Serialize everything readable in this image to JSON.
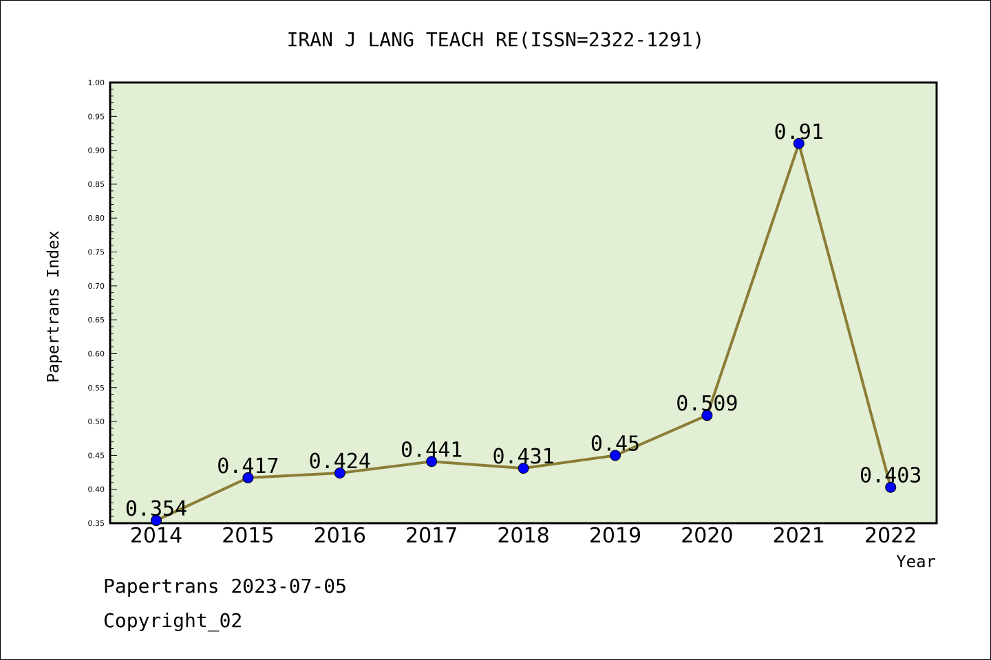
{
  "chart_data": {
    "type": "line",
    "title": "IRAN J LANG TEACH RE(ISSN=2322-1291)",
    "xlabel": "Year",
    "ylabel": "Papertrans Index",
    "categories": [
      "2014",
      "2015",
      "2016",
      "2017",
      "2018",
      "2019",
      "2020",
      "2021",
      "2022"
    ],
    "values": [
      0.354,
      0.417,
      0.424,
      0.441,
      0.431,
      0.45,
      0.509,
      0.91,
      0.403
    ],
    "data_labels": [
      "0.354",
      "0.417",
      "0.424",
      "0.441",
      "0.431",
      "0.45",
      "0.509",
      "0.91",
      "0.403"
    ],
    "ylim": [
      0.35,
      1.0
    ],
    "yticks": [
      "0.35",
      "0.40",
      "0.45",
      "0.50",
      "0.55",
      "0.60",
      "0.65",
      "0.70",
      "0.75",
      "0.80",
      "0.85",
      "0.90",
      "0.95",
      "1.00"
    ],
    "grid": false,
    "colors": {
      "plot_background": "#e2efd5",
      "line": "#8b7d36",
      "marker": "#0000ff"
    }
  },
  "footer": {
    "source": "Papertrans 2023-07-05",
    "copyright": "Copyright_02"
  }
}
